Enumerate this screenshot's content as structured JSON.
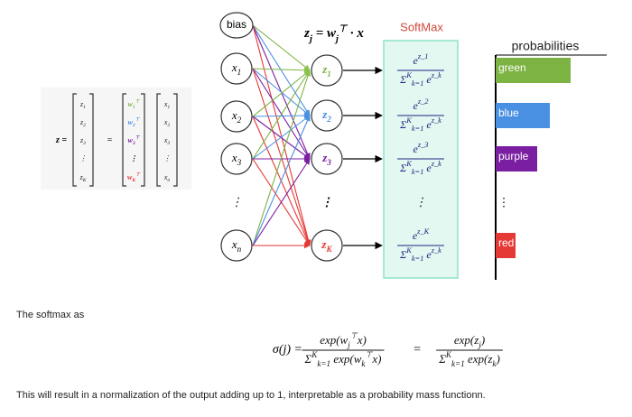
{
  "matrix": {
    "lhs": "z =",
    "z": [
      "z_1",
      "z_2",
      "z_3",
      "⋮",
      "z_K"
    ],
    "equals": "=",
    "w": [
      "w_1^⊤",
      "w_2^⊤",
      "w_3^⊤",
      "⋮",
      "w_K^⊤"
    ],
    "x": [
      "x_1",
      "x_2",
      "x_3",
      "⋮",
      "x_n"
    ]
  },
  "network": {
    "equation": "z_j = w_j^⊤ · x",
    "inputs": [
      "bias",
      "x_1",
      "x_2",
      "x_3",
      "⋮",
      "x_n"
    ],
    "outputs": [
      "z_1",
      "z_2",
      "z_3",
      "⋮",
      "z_K"
    ],
    "softmax_label": "SoftMax",
    "softmax": [
      {
        "num": "e^{z_1}",
        "den": "Σ^K_{k=1} e^{z_k}"
      },
      {
        "num": "e^{z_2}",
        "den": "Σ^K_{k=1} e^{z_k}"
      },
      {
        "num": "e^{z_3}",
        "den": "Σ^K_{k=1} e^{z_k}"
      },
      "⋮",
      {
        "num": "e^{z_K}",
        "den": "Σ^K_{k=1} e^{z_k}"
      }
    ]
  },
  "probabilities": {
    "title": "probabilities",
    "labels": [
      "green",
      "blue",
      "purple",
      "⋮",
      "red"
    ]
  },
  "text": {
    "intro": "The softmax as",
    "formula": {
      "lhs": "σ(j) =",
      "frac1": {
        "num": "exp(w_j^⊤x)",
        "den": "Σ^K_{k=1} exp(w_k^⊤x)"
      },
      "eq": "=",
      "frac2": {
        "num": "exp(z_j)",
        "den": "Σ^K_{k=1} exp(z_k)"
      }
    },
    "conclusion": "This will result in a normalization of the output adding up to 1, interpretable as a probability mass functionn."
  }
}
